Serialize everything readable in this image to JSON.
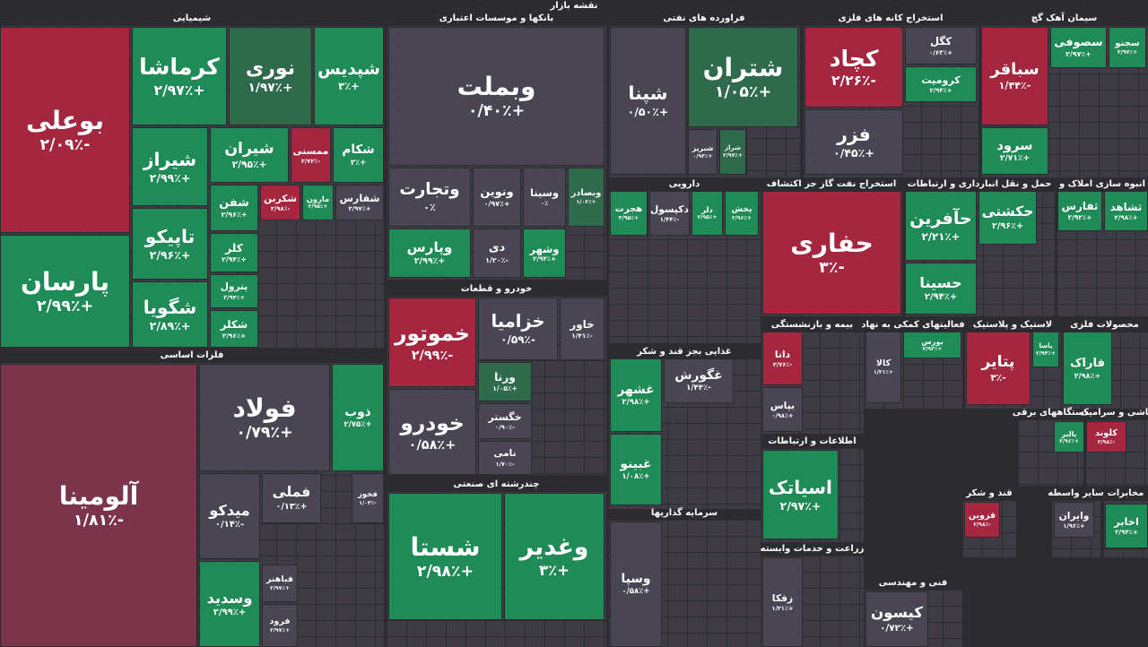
{
  "title": "نقشه بازار",
  "sectors": [
    {
      "name": "شیمیایی",
      "tiles": [
        {
          "name": "بوعلی",
          "change": "-۲/۰۹٪"
        },
        {
          "name": "پارسان",
          "change": "+۲/۹۹٪"
        },
        {
          "name": "کرماشا",
          "change": "+۲/۹۷٪"
        },
        {
          "name": "نوری",
          "change": "+۱/۹۷٪"
        },
        {
          "name": "شپدیس",
          "change": "+۳٪"
        },
        {
          "name": "شیراز",
          "change": "+۲/۹۹٪"
        },
        {
          "name": "تاپیکو",
          "change": "+۲/۹۶٪"
        },
        {
          "name": "شگویا",
          "change": "+۲/۸۹٪"
        },
        {
          "name": "شیران",
          "change": "+۲/۹۵٪"
        },
        {
          "name": "ممسنی",
          "change": "-۲/۷۲٪"
        },
        {
          "name": "شکام",
          "change": "+۳٪"
        },
        {
          "name": "شفن",
          "change": "+۲/۹۶٪"
        },
        {
          "name": "کلر",
          "change": "+۲/۹۴٪"
        },
        {
          "name": "پترول",
          "change": "+۲/۹۴٪"
        },
        {
          "name": "شکلر",
          "change": "+۲/۹۶٪"
        },
        {
          "name": "شکربن",
          "change": "-۲/۹۸٪"
        },
        {
          "name": "مارون",
          "change": "+۲/۹۵٪"
        },
        {
          "name": "شفارس",
          "change": "+۲/۹۷٪"
        }
      ]
    },
    {
      "name": "فلزات اساسی",
      "tiles": [
        {
          "name": "آلومینا",
          "change": "-۱/۸۱٪"
        },
        {
          "name": "فولاد",
          "change": "+۰/۷۹٪"
        },
        {
          "name": "ذوب",
          "change": "+۲/۷۵٪"
        },
        {
          "name": "فملی",
          "change": "+۰/۱۳٪"
        },
        {
          "name": "میدکو",
          "change": "-۰/۱۴٪"
        },
        {
          "name": "وسدید",
          "change": "+۲/۹۹٪"
        },
        {
          "name": "فخوز",
          "change": "-۱/۰۴٪"
        },
        {
          "name": "فباهنر",
          "change": "+۲/۹۷٪"
        },
        {
          "name": "فرود",
          "change": "+۲/۹۷٪"
        }
      ]
    },
    {
      "name": "بانکها و موسسات اعتباری",
      "tiles": [
        {
          "name": "وبملت",
          "change": "+۰/۴۰٪"
        },
        {
          "name": "وتجارت",
          "change": "۰٪"
        },
        {
          "name": "وپارس",
          "change": "+۲/۹۹٪"
        },
        {
          "name": "ونوین",
          "change": "+۰/۹۷٪"
        },
        {
          "name": "وسینا",
          "change": "۰٪"
        },
        {
          "name": "وبصادر",
          "change": "+۱/۰۶٪"
        },
        {
          "name": "دی",
          "change": "-۱/۲۰٪"
        },
        {
          "name": "وشهر",
          "change": "+۲/۹۴٪"
        }
      ]
    },
    {
      "name": "خودرو و قطعات",
      "tiles": [
        {
          "name": "خموتور",
          "change": "-۲/۹۹٪"
        },
        {
          "name": "خودرو",
          "change": "+۰/۵۸٪"
        },
        {
          "name": "خزامیا",
          "change": "-۰/۵۹٪"
        },
        {
          "name": "خاور",
          "change": "-۱/۴۱٪"
        },
        {
          "name": "ورنا",
          "change": "+۱/۰۵٪"
        },
        {
          "name": "خگستر",
          "change": "-۰/۹۰٪"
        },
        {
          "name": "نامی",
          "change": "-۱/۷۰٪"
        }
      ]
    },
    {
      "name": "چندرشته ای صنعتی",
      "tiles": [
        {
          "name": "شستا",
          "change": "+۲/۹۸٪"
        },
        {
          "name": "وغدیر",
          "change": "+۳٪"
        }
      ]
    },
    {
      "name": "فراورده های نفتی",
      "tiles": [
        {
          "name": "شپنا",
          "change": "+۰/۵۰٪"
        },
        {
          "name": "شتران",
          "change": "+۱/۰۵٪"
        },
        {
          "name": "شبریز",
          "change": "+۰/۹۴٪"
        },
        {
          "name": "شراز",
          "change": "+۲/۹۷٪"
        }
      ]
    },
    {
      "name": "استخراج کانه های فلزی",
      "tiles": [
        {
          "name": "کچاد",
          "change": "-۲/۲۶٪"
        },
        {
          "name": "فزر",
          "change": "+۰/۴۵٪"
        },
        {
          "name": "کگل",
          "change": "+۰/۶۳٪"
        },
        {
          "name": "کرومیت",
          "change": "+۲/۹۴٪"
        }
      ]
    },
    {
      "name": "سیمان آهک گچ",
      "tiles": [
        {
          "name": "سباقر",
          "change": "-۱/۴۴٪"
        },
        {
          "name": "سرود",
          "change": "+۲/۷۱٪"
        },
        {
          "name": "سصوفی",
          "change": "+۲/۹۷٪"
        },
        {
          "name": "سجنو",
          "change": "+۲/۹۷٪"
        }
      ]
    },
    {
      "name": "دارویی",
      "tiles": [
        {
          "name": "هجرت",
          "change": "+۲/۹۵٪"
        },
        {
          "name": "دکپسول",
          "change": "-۱/۴۴٪"
        },
        {
          "name": "دلر",
          "change": "+۲/۹۵٪"
        },
        {
          "name": "پخش",
          "change": "+۲/۹۶٪"
        }
      ]
    },
    {
      "name": "استخراج نفت گاز جز اکتشاف",
      "tiles": [
        {
          "name": "حفاری",
          "change": "-۳٪"
        }
      ]
    },
    {
      "name": "حمل و نقل انبارداری و ارتباطات",
      "tiles": [
        {
          "name": "حآفرین",
          "change": "+۲/۲۱٪"
        },
        {
          "name": "حسینا",
          "change": "+۲/۹۴٪"
        },
        {
          "name": "حکشتی",
          "change": "+۲/۹۶٪"
        }
      ]
    },
    {
      "name": "انبوه سازی املاک و",
      "tiles": [
        {
          "name": "ثفارس",
          "change": "+۲/۹۲٪"
        },
        {
          "name": "ثشاهد",
          "change": "+۲/۹۸٪"
        }
      ]
    },
    {
      "name": "غذایی بجز قند و شکر",
      "tiles": [
        {
          "name": "غشهر",
          "change": "+۲/۹۸٪"
        },
        {
          "name": "غبینو",
          "change": "+۱/۰۸٪"
        },
        {
          "name": "غگورش",
          "change": "-۱/۴۴٪"
        }
      ]
    },
    {
      "name": "سرمایه گذاریها",
      "tiles": [
        {
          "name": "وسپا",
          "change": "+۰/۵۸٪"
        }
      ]
    },
    {
      "name": "بیمه و بازنشستگی",
      "tiles": [
        {
          "name": "دانا",
          "change": "-۲/۷۶٪"
        },
        {
          "name": "بپاس",
          "change": "+۰/۹۸٪"
        }
      ]
    },
    {
      "name": "اطلاعات و ارتباطات",
      "tiles": [
        {
          "name": "اسیاتک",
          "change": "+۲/۹۷٪"
        }
      ]
    },
    {
      "name": "زراعت و خدمات وابسته",
      "tiles": [
        {
          "name": "زفکا",
          "change": "+۱/۲۱٪"
        }
      ]
    },
    {
      "name": "فعالیتهای کمکی به نهاد",
      "tiles": [
        {
          "name": "کالا",
          "change": "+۱/۲۱٪"
        },
        {
          "name": "بورس",
          "change": "+۲/۹۳٪"
        }
      ]
    },
    {
      "name": "لاستیک و پلاستیک",
      "tiles": [
        {
          "name": "پتایر",
          "change": "-۳٪"
        },
        {
          "name": "پاسا",
          "change": "+۲/۹۴٪"
        }
      ]
    },
    {
      "name": "محصولات فلزی",
      "tiles": [
        {
          "name": "فاراک",
          "change": "+۲/۹۸٪"
        }
      ]
    },
    {
      "name": "فنی و مهندسی",
      "tiles": [
        {
          "name": "کیسون",
          "change": "+۰/۷۲٪"
        }
      ]
    },
    {
      "name": "کاشی و سرامیک",
      "tiles": [
        {
          "name": "کلوند",
          "change": "-۲/۹۸٪"
        }
      ]
    },
    {
      "name": "دستگاههای برقی",
      "tiles": [
        {
          "name": "بالبر",
          "change": "+۲/۹۶٪"
        }
      ]
    },
    {
      "name": "قند و شکر",
      "tiles": [
        {
          "name": "قزوین",
          "change": "-۲/۹۸٪"
        }
      ]
    },
    {
      "name": "سایر واسطه",
      "tiles": [
        {
          "name": "وایران",
          "change": "+۱/۹۶٪"
        }
      ]
    },
    {
      "name": "مخابرات",
      "tiles": [
        {
          "name": "اخابر",
          "change": "+۲/۹۴٪"
        }
      ]
    }
  ]
}
